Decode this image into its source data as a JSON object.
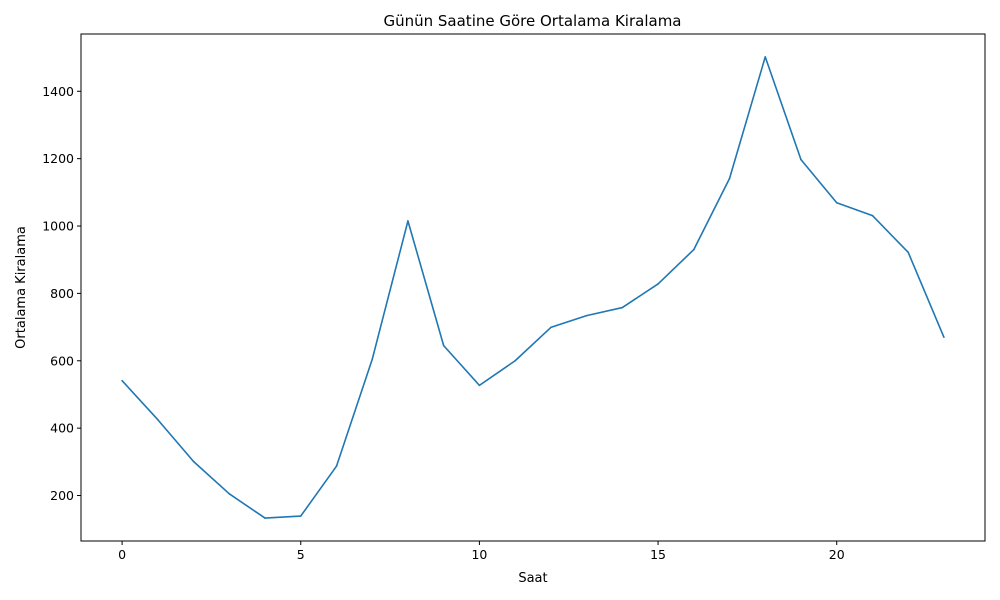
{
  "chart_data": {
    "type": "line",
    "title": "Günün Saatine Göre Ortalama Kiralama",
    "xlabel": "Saat",
    "ylabel": "Ortalama Kiralama",
    "xlim": [
      -1.15,
      24.15
    ],
    "ylim": [
      65,
      1570
    ],
    "xticks": [
      0,
      5,
      10,
      15,
      20
    ],
    "yticks": [
      200,
      400,
      600,
      800,
      1000,
      1200,
      1400
    ],
    "grid": false,
    "series_color": "#1f77b4",
    "series": [
      {
        "x": [
          0,
          1,
          2,
          3,
          4,
          5,
          6,
          7,
          8,
          9,
          10,
          11,
          12,
          13,
          14,
          15,
          16,
          17,
          18,
          19,
          20,
          21,
          22,
          23
        ],
        "values": [
          541,
          425,
          301,
          205,
          133,
          139,
          287,
          604,
          1015,
          645,
          527,
          600,
          699,
          734,
          758,
          828,
          930,
          1141,
          1502,
          1197,
          1069,
          1031,
          922,
          670
        ]
      }
    ]
  }
}
